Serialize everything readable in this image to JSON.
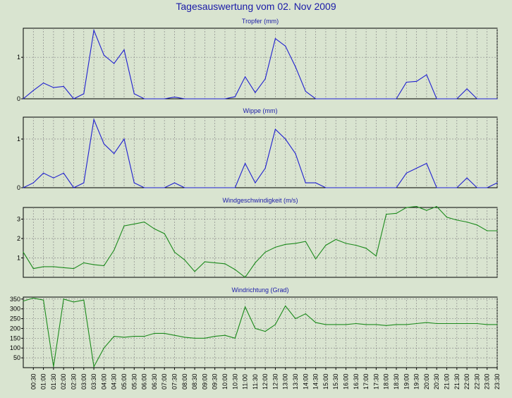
{
  "page_title": "Tagesauswertung vom 02. Nov 2009",
  "colors": {
    "background": "#d9e4d0",
    "title_text": "#1a1aa8",
    "grid": "#8a8a8a",
    "rain_series": "#1f1fd0",
    "wind_series": "#1c8a1c"
  },
  "x_tick_labels": [
    "00:30",
    "01:00",
    "01:30",
    "02:00",
    "02:30",
    "03:00",
    "03:30",
    "04:00",
    "04:30",
    "05:00",
    "05:30",
    "06:00",
    "06:30",
    "07:00",
    "07:30",
    "08:00",
    "08:30",
    "09:00",
    "09:30",
    "10:00",
    "10:30",
    "11:00",
    "11:30",
    "12:00",
    "12:30",
    "13:00",
    "13:30",
    "14:00",
    "14:30",
    "15:00",
    "15:30",
    "16:00",
    "16:30",
    "17:00",
    "17:30",
    "18:00",
    "18:30",
    "19:00",
    "19:30",
    "20:00",
    "20:30",
    "21:00",
    "21:30",
    "22:00",
    "22:30",
    "23:00",
    "23:30"
  ],
  "chart_data": [
    {
      "type": "line",
      "title": "Tropfer (mm)",
      "x": [
        "00:00",
        "00:30",
        "01:00",
        "01:30",
        "02:00",
        "02:30",
        "03:00",
        "03:30",
        "04:00",
        "04:30",
        "05:00",
        "05:30",
        "06:00",
        "06:30",
        "07:00",
        "07:30",
        "08:00",
        "08:30",
        "09:00",
        "09:30",
        "10:00",
        "10:30",
        "11:00",
        "11:30",
        "12:00",
        "12:30",
        "13:00",
        "13:30",
        "14:00",
        "14:30",
        "15:00",
        "15:30",
        "16:00",
        "16:30",
        "17:00",
        "17:30",
        "18:00",
        "18:30",
        "19:00",
        "19:30",
        "20:00",
        "20:30",
        "21:00",
        "21:30",
        "22:00",
        "22:30",
        "23:00",
        "23:30"
      ],
      "values": [
        0,
        0.2,
        0.38,
        0.27,
        0.3,
        0,
        0.12,
        1.65,
        1.05,
        0.85,
        1.18,
        0.12,
        0,
        0,
        0,
        0.04,
        0,
        0,
        0,
        0,
        0,
        0.05,
        0.53,
        0.15,
        0.48,
        1.45,
        1.27,
        0.77,
        0.18,
        0,
        0,
        0,
        0,
        0,
        0,
        0,
        0,
        0,
        0.4,
        0.42,
        0.58,
        0,
        0,
        0,
        0.24,
        0,
        0,
        0
      ],
      "ylim": [
        0,
        1.7
      ],
      "yticks": [
        0,
        1
      ],
      "grid": true
    },
    {
      "type": "line",
      "title": "Wippe (mm)",
      "x": [
        "00:00",
        "00:30",
        "01:00",
        "01:30",
        "02:00",
        "02:30",
        "03:00",
        "03:30",
        "04:00",
        "04:30",
        "05:00",
        "05:30",
        "06:00",
        "06:30",
        "07:00",
        "07:30",
        "08:00",
        "08:30",
        "09:00",
        "09:30",
        "10:00",
        "10:30",
        "11:00",
        "11:30",
        "12:00",
        "12:30",
        "13:00",
        "13:30",
        "14:00",
        "14:30",
        "15:00",
        "15:30",
        "16:00",
        "16:30",
        "17:00",
        "17:30",
        "18:00",
        "18:30",
        "19:00",
        "19:30",
        "20:00",
        "20:30",
        "21:00",
        "21:30",
        "22:00",
        "22:30",
        "23:00",
        "23:30"
      ],
      "values": [
        0,
        0.1,
        0.3,
        0.2,
        0.3,
        0,
        0.1,
        1.4,
        0.9,
        0.7,
        1.0,
        0.1,
        0,
        0,
        0,
        0.1,
        0,
        0,
        0,
        0,
        0,
        0,
        0.5,
        0.1,
        0.4,
        1.2,
        1.0,
        0.7,
        0.1,
        0.1,
        0,
        0,
        0,
        0,
        0,
        0,
        0,
        0,
        0.3,
        0.4,
        0.5,
        0,
        0,
        0,
        0.2,
        0,
        0,
        0.1
      ],
      "ylim": [
        0,
        1.45
      ],
      "yticks": [
        0,
        1
      ],
      "grid": true
    },
    {
      "type": "line",
      "title": "Windgeschwindigkeit (m/s)",
      "x": [
        "00:00",
        "00:30",
        "01:00",
        "01:30",
        "02:00",
        "02:30",
        "03:00",
        "03:30",
        "04:00",
        "04:30",
        "05:00",
        "05:30",
        "06:00",
        "06:30",
        "07:00",
        "07:30",
        "08:00",
        "08:30",
        "09:00",
        "09:30",
        "10:00",
        "10:30",
        "11:00",
        "11:30",
        "12:00",
        "12:30",
        "13:00",
        "13:30",
        "14:00",
        "14:30",
        "15:00",
        "15:30",
        "16:00",
        "16:30",
        "17:00",
        "17:30",
        "18:00",
        "18:30",
        "19:00",
        "19:30",
        "20:00",
        "20:30",
        "21:00",
        "21:30",
        "22:00",
        "22:30",
        "23:00",
        "23:30"
      ],
      "values": [
        1.3,
        0.45,
        0.55,
        0.55,
        0.5,
        0.45,
        0.75,
        0.65,
        0.6,
        1.4,
        2.65,
        2.75,
        2.85,
        2.5,
        2.25,
        1.3,
        0.9,
        0.3,
        0.8,
        0.75,
        0.7,
        0.4,
        0,
        0.75,
        1.3,
        1.55,
        1.7,
        1.75,
        1.85,
        0.95,
        1.65,
        1.95,
        1.75,
        1.65,
        1.5,
        1.1,
        3.25,
        3.3,
        3.6,
        3.65,
        3.45,
        3.65,
        3.1,
        2.95,
        2.85,
        2.7,
        2.4,
        2.4
      ],
      "ylim": [
        0,
        3.6
      ],
      "yticks": [
        1,
        2,
        3
      ],
      "grid": true
    },
    {
      "type": "line",
      "title": "Windrichtung (Grad)",
      "x": [
        "00:00",
        "00:30",
        "01:00",
        "01:30",
        "02:00",
        "02:30",
        "03:00",
        "03:30",
        "04:00",
        "04:30",
        "05:00",
        "05:30",
        "06:00",
        "06:30",
        "07:00",
        "07:30",
        "08:00",
        "08:30",
        "09:00",
        "09:30",
        "10:00",
        "10:30",
        "11:00",
        "11:30",
        "12:00",
        "12:30",
        "13:00",
        "13:30",
        "14:00",
        "14:30",
        "15:00",
        "15:30",
        "16:00",
        "16:30",
        "17:00",
        "17:30",
        "18:00",
        "18:30",
        "19:00",
        "19:30",
        "20:00",
        "20:30",
        "21:00",
        "21:30",
        "22:00",
        "22:30",
        "23:00",
        "23:30"
      ],
      "values": [
        340,
        355,
        345,
        5,
        350,
        335,
        345,
        5,
        100,
        160,
        155,
        160,
        160,
        175,
        175,
        165,
        155,
        150,
        150,
        160,
        165,
        150,
        310,
        200,
        185,
        220,
        315,
        250,
        275,
        230,
        220,
        220,
        220,
        225,
        220,
        220,
        215,
        220,
        220,
        225,
        230,
        225,
        225,
        225,
        225,
        225,
        220,
        220
      ],
      "ylim": [
        0,
        360
      ],
      "yticks": [
        50,
        100,
        150,
        200,
        250,
        300,
        350
      ],
      "grid": true
    }
  ]
}
